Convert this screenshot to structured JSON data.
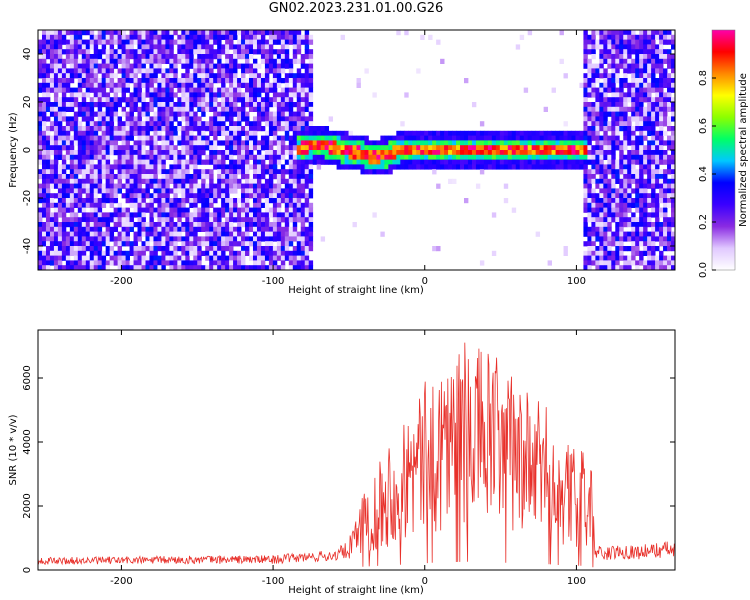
{
  "title": "GN02.2023.231.01.00.G26",
  "chart_data": [
    {
      "type": "heatmap",
      "xlabel": "Height of straight line (km)",
      "ylabel": "Frequency (Hz)",
      "xlim": [
        -255,
        165
      ],
      "ylim": [
        -50,
        50
      ],
      "xticks": [
        -200,
        -100,
        0,
        100
      ],
      "yticks": [
        -40,
        -20,
        0,
        20,
        40
      ],
      "colorbar": {
        "label": "Normalized spectral amplitude",
        "ticks": [
          "0.0",
          "0.2",
          "0.4",
          "0.6",
          "0.8"
        ],
        "range": [
          0,
          1
        ],
        "colors": [
          "#ffffff",
          "#e0c8ff",
          "#8a2be2",
          "#3a00ff",
          "#0000ff",
          "#00c8ff",
          "#00ff66",
          "#8cff00",
          "#ffff00",
          "#ff8800",
          "#ff0000",
          "#ff00aa"
        ]
      },
      "ridge": {
        "x_range": [
          -85,
          108
        ],
        "frequency_track": [
          [
            -85,
            0
          ],
          [
            -75,
            2
          ],
          [
            -65,
            2
          ],
          [
            -55,
            0
          ],
          [
            -45,
            -1
          ],
          [
            -35,
            -3
          ],
          [
            -25,
            -2
          ],
          [
            -15,
            0
          ],
          [
            0,
            0
          ],
          [
            30,
            0
          ],
          [
            60,
            0
          ],
          [
            90,
            0
          ],
          [
            108,
            0
          ]
        ],
        "noise_regions": [
          [
            -255,
            -75
          ],
          [
            105,
            165
          ]
        ],
        "noise_level_amplitude": 0.25
      }
    },
    {
      "type": "line",
      "xlabel": "Height of straight line (km)",
      "ylabel": "SNR (10 * v/v)",
      "xlim": [
        -255,
        165
      ],
      "ylim": [
        0,
        7500
      ],
      "xticks": [
        -200,
        -100,
        0,
        100
      ],
      "yticks": [
        0,
        2000,
        4000,
        6000
      ],
      "color": "#e8302a",
      "series": [
        {
          "x": [
            -255,
            -200,
            -150,
            -100,
            -60,
            -50,
            -45,
            -40,
            -35,
            -30,
            -20,
            -10,
            0,
            10,
            20,
            30,
            40,
            50,
            60,
            70,
            80,
            90,
            100,
            105,
            110,
            112,
            120,
            130,
            140,
            150,
            160,
            165
          ],
          "values": [
            280,
            300,
            320,
            330,
            450,
            650,
            1500,
            2100,
            2300,
            2600,
            3100,
            3600,
            4200,
            4800,
            5000,
            5200,
            5000,
            4700,
            4300,
            3900,
            3700,
            3000,
            2700,
            2700,
            2500,
            600,
            500,
            600,
            550,
            600,
            650,
            600
          ]
        }
      ]
    }
  ]
}
